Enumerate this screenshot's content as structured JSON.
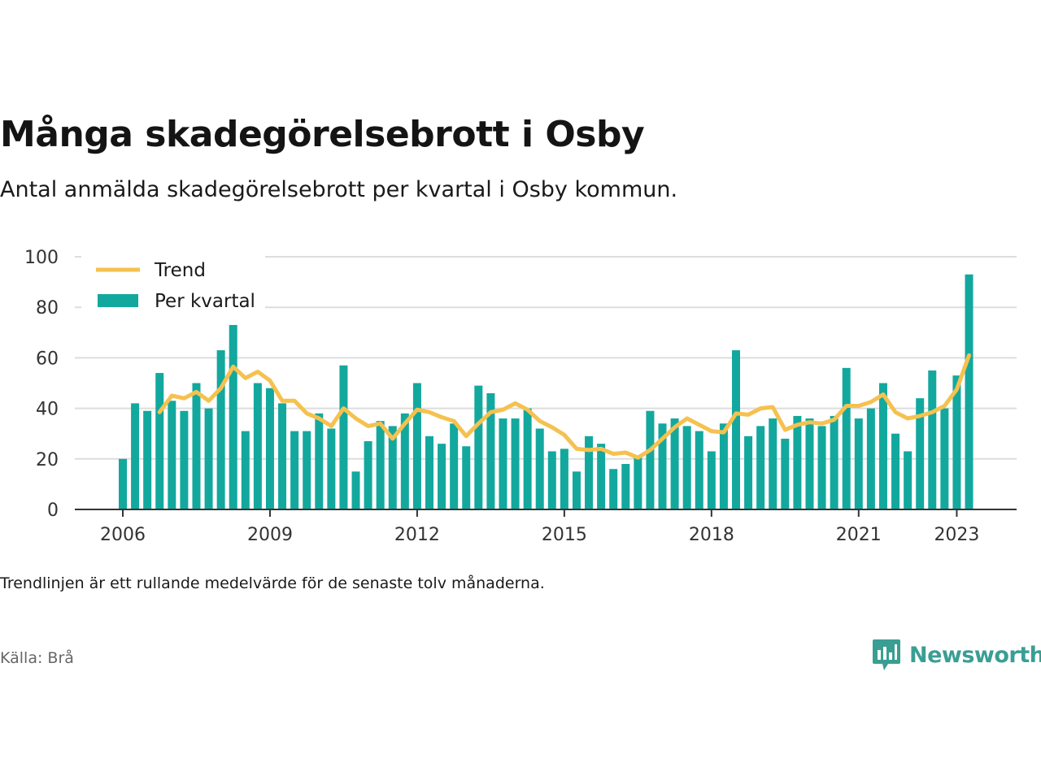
{
  "title": "Många skadegörelsebrott i Osby",
  "subtitle": "Antal anmälda skadegörelsebrott per kvartal i Osby kommun.",
  "note": "Trendlinjen är ett rullande medelvärde för de senaste tolv månaderna.",
  "source": "Källa: Brå",
  "brand": {
    "name": "Newsworthy",
    "icon": "newsworthy-logo-icon",
    "color": "#3a9e93"
  },
  "colors": {
    "bars": "#13a89e",
    "trend": "#f5c14f",
    "grid": "#dddddd",
    "axis": "#333333"
  },
  "chart_data": {
    "type": "bar",
    "x_start": "2006Q1",
    "frequency": "quarterly",
    "ylim": [
      0,
      100
    ],
    "yticks": [
      0,
      20,
      40,
      60,
      80,
      100
    ],
    "xticks": [
      "2006",
      "2009",
      "2012",
      "2015",
      "2018",
      "2021",
      "2023"
    ],
    "grid": true,
    "legend_position": "top-left",
    "series": [
      {
        "name": "Per kvartal",
        "type": "bar",
        "values": [
          20,
          42,
          39,
          54,
          43,
          39,
          50,
          40,
          63,
          73,
          31,
          50,
          48,
          42,
          31,
          31,
          38,
          32,
          57,
          15,
          27,
          35,
          33,
          38,
          50,
          29,
          26,
          34,
          25,
          49,
          46,
          36,
          36,
          40,
          32,
          23,
          24,
          15,
          29,
          26,
          16,
          18,
          21,
          39,
          34,
          36,
          33,
          31,
          23,
          34,
          63,
          29,
          33,
          36,
          28,
          37,
          36,
          33,
          37,
          56,
          36,
          40,
          50,
          30,
          23,
          44,
          55,
          40,
          53,
          93
        ]
      },
      {
        "name": "Trend",
        "type": "line",
        "values": [
          null,
          null,
          null,
          38.5,
          45,
          44,
          46.5,
          43,
          48,
          56.5,
          52,
          54.5,
          51,
          43,
          43,
          38,
          36,
          33,
          40,
          36,
          33,
          34,
          28,
          34,
          39.5,
          38.5,
          36.5,
          35,
          29,
          34,
          38.5,
          39.5,
          42,
          39.5,
          35,
          32.5,
          29.5,
          24,
          23.5,
          24,
          22,
          22.5,
          20.5,
          23.5,
          28,
          32.5,
          36,
          33.5,
          31,
          30.5,
          38,
          37.5,
          40,
          40.5,
          31.5,
          33.5,
          34.5,
          34,
          35.5,
          41,
          41,
          42.5,
          45.5,
          38.5,
          36,
          37,
          38.5,
          41,
          47.5,
          61
        ]
      }
    ]
  }
}
